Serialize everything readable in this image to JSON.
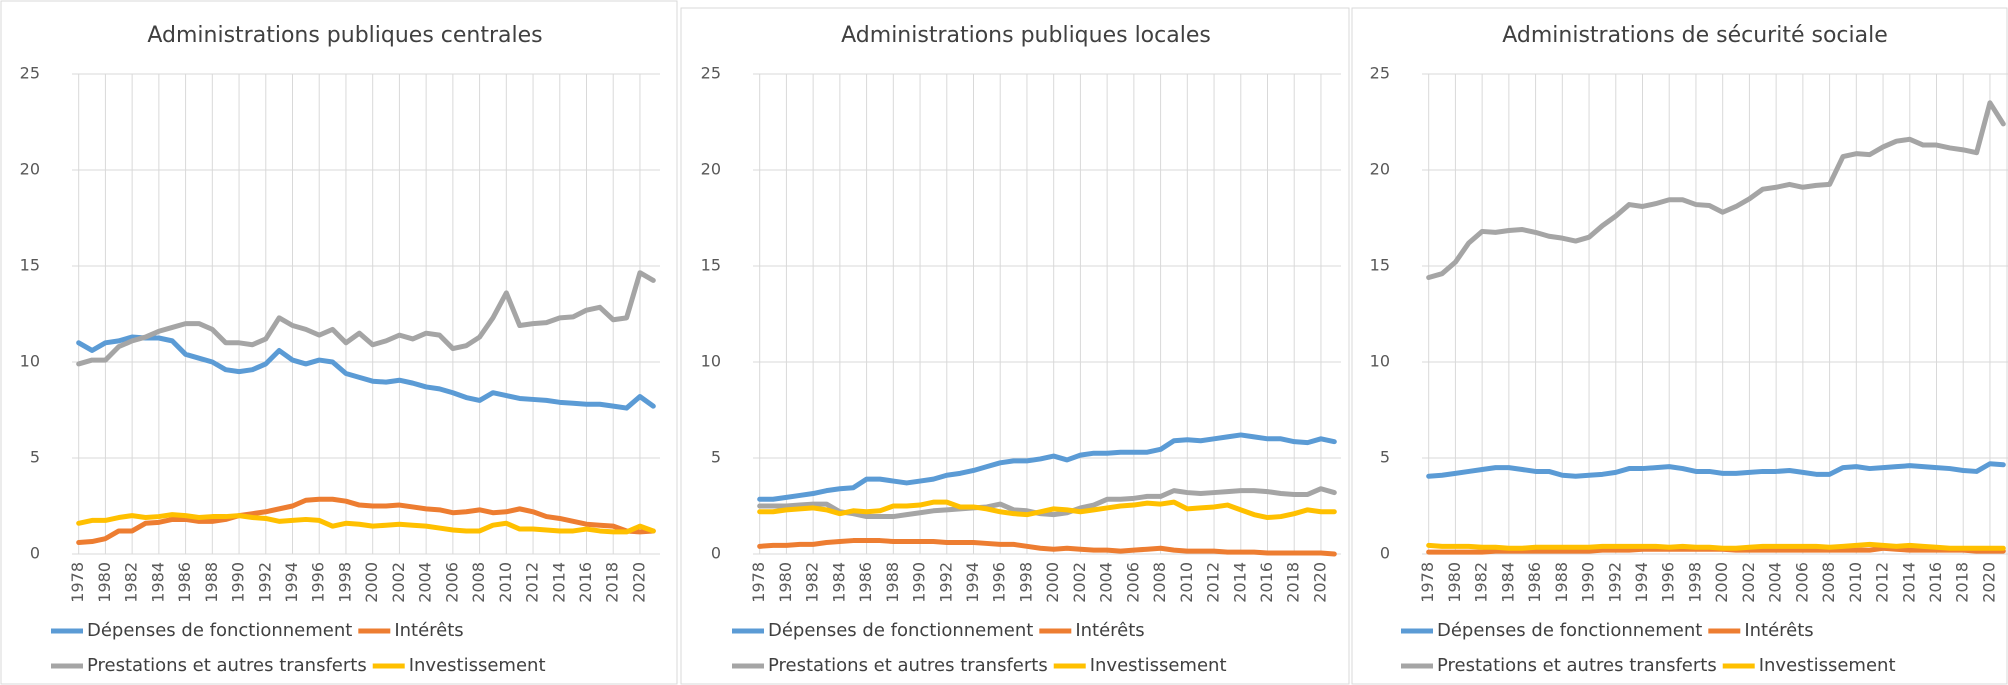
{
  "chart_data": [
    {
      "type": "line",
      "title": "Administrations publiques centrales",
      "x": [
        1978,
        1979,
        1980,
        1981,
        1982,
        1983,
        1984,
        1985,
        1986,
        1987,
        1988,
        1989,
        1990,
        1991,
        1992,
        1993,
        1994,
        1995,
        1996,
        1997,
        1998,
        1999,
        2000,
        2001,
        2002,
        2003,
        2004,
        2005,
        2006,
        2007,
        2008,
        2009,
        2010,
        2011,
        2012,
        2013,
        2014,
        2015,
        2016,
        2017,
        2018,
        2019,
        2020,
        2021
      ],
      "xlim": [
        1977.5,
        2021.5
      ],
      "xticks": [
        1978,
        1980,
        1982,
        1984,
        1986,
        1988,
        1990,
        1992,
        1994,
        1996,
        1998,
        2000,
        2002,
        2004,
        2006,
        2008,
        2010,
        2012,
        2014,
        2016,
        2018,
        2020
      ],
      "ylim": [
        0,
        25
      ],
      "yticks": [
        0,
        5,
        10,
        15,
        20,
        25
      ],
      "grid": true,
      "series": [
        {
          "name": "Dépenses de fonctionnement",
          "color": "#5b9bd5",
          "values": [
            11.0,
            10.6,
            11.0,
            11.1,
            11.3,
            11.25,
            11.25,
            11.1,
            10.4,
            10.2,
            10.0,
            9.6,
            9.5,
            9.6,
            9.9,
            10.6,
            10.1,
            9.9,
            10.1,
            10.0,
            9.4,
            9.2,
            9.0,
            8.95,
            9.05,
            8.9,
            8.7,
            8.6,
            8.4,
            8.15,
            8.0,
            8.4,
            8.25,
            8.1,
            8.05,
            8.0,
            7.9,
            7.85,
            7.8,
            7.8,
            7.7,
            7.6,
            8.2,
            7.7
          ]
        },
        {
          "name": "Intérêts",
          "color": "#ed7d31",
          "values": [
            0.6,
            0.65,
            0.8,
            1.2,
            1.2,
            1.6,
            1.65,
            1.8,
            1.8,
            1.7,
            1.7,
            1.8,
            2.0,
            2.1,
            2.2,
            2.35,
            2.5,
            2.8,
            2.85,
            2.85,
            2.75,
            2.55,
            2.5,
            2.5,
            2.55,
            2.45,
            2.35,
            2.3,
            2.15,
            2.2,
            2.3,
            2.15,
            2.2,
            2.35,
            2.2,
            1.95,
            1.85,
            1.7,
            1.55,
            1.5,
            1.45,
            1.2,
            1.15,
            1.2
          ]
        },
        {
          "name": "Prestations et autres transferts",
          "color": "#a5a5a5",
          "values": [
            9.9,
            10.1,
            10.1,
            10.8,
            11.1,
            11.3,
            11.6,
            11.8,
            12.0,
            12.0,
            11.7,
            11.0,
            11.0,
            10.9,
            11.2,
            12.3,
            11.9,
            11.7,
            11.4,
            11.7,
            11.0,
            11.5,
            10.9,
            11.1,
            11.4,
            11.2,
            11.5,
            11.4,
            10.7,
            10.85,
            11.3,
            12.3,
            13.6,
            11.9,
            12.0,
            12.05,
            12.3,
            12.35,
            12.7,
            12.85,
            12.2,
            12.3,
            14.65,
            14.25
          ]
        },
        {
          "name": "Investissement",
          "color": "#ffc000",
          "values": [
            1.6,
            1.75,
            1.75,
            1.9,
            2.0,
            1.9,
            1.95,
            2.05,
            2.0,
            1.9,
            1.95,
            1.95,
            2.0,
            1.9,
            1.85,
            1.7,
            1.75,
            1.8,
            1.75,
            1.45,
            1.6,
            1.55,
            1.45,
            1.5,
            1.55,
            1.5,
            1.45,
            1.35,
            1.25,
            1.2,
            1.2,
            1.5,
            1.6,
            1.3,
            1.3,
            1.25,
            1.2,
            1.2,
            1.3,
            1.2,
            1.15,
            1.15,
            1.45,
            1.2
          ]
        }
      ]
    },
    {
      "type": "line",
      "title": "Administrations publiques locales",
      "x": [
        1978,
        1979,
        1980,
        1981,
        1982,
        1983,
        1984,
        1985,
        1986,
        1987,
        1988,
        1989,
        1990,
        1991,
        1992,
        1993,
        1994,
        1995,
        1996,
        1997,
        1998,
        1999,
        2000,
        2001,
        2002,
        2003,
        2004,
        2005,
        2006,
        2007,
        2008,
        2009,
        2010,
        2011,
        2012,
        2013,
        2014,
        2015,
        2016,
        2017,
        2018,
        2019,
        2020,
        2021
      ],
      "xlim": [
        1977.5,
        2021.5
      ],
      "xticks": [
        1978,
        1980,
        1982,
        1984,
        1986,
        1988,
        1990,
        1992,
        1994,
        1996,
        1998,
        2000,
        2002,
        2004,
        2006,
        2008,
        2010,
        2012,
        2014,
        2016,
        2018,
        2020
      ],
      "ylim": [
        0,
        25
      ],
      "yticks": [
        0,
        5,
        10,
        15,
        20,
        25
      ],
      "grid": true,
      "series": [
        {
          "name": "Dépenses de fonctionnement",
          "color": "#5b9bd5",
          "values": [
            2.85,
            2.85,
            2.95,
            3.05,
            3.15,
            3.3,
            3.4,
            3.45,
            3.9,
            3.9,
            3.8,
            3.7,
            3.8,
            3.9,
            4.1,
            4.2,
            4.35,
            4.55,
            4.75,
            4.85,
            4.85,
            4.95,
            5.1,
            4.9,
            5.15,
            5.25,
            5.25,
            5.3,
            5.3,
            5.3,
            5.45,
            5.9,
            5.95,
            5.9,
            6.0,
            6.1,
            6.2,
            6.1,
            6.0,
            6.0,
            5.85,
            5.8,
            6.0,
            5.85
          ]
        },
        {
          "name": "Intérêts",
          "color": "#ed7d31",
          "values": [
            0.4,
            0.45,
            0.45,
            0.5,
            0.5,
            0.6,
            0.65,
            0.7,
            0.7,
            0.7,
            0.65,
            0.65,
            0.65,
            0.65,
            0.6,
            0.6,
            0.6,
            0.55,
            0.5,
            0.5,
            0.4,
            0.3,
            0.25,
            0.3,
            0.25,
            0.2,
            0.2,
            0.15,
            0.2,
            0.25,
            0.3,
            0.2,
            0.15,
            0.15,
            0.15,
            0.1,
            0.1,
            0.1,
            0.05,
            0.05,
            0.05,
            0.05,
            0.05,
            0.0
          ]
        },
        {
          "name": "Prestations et autres transferts",
          "color": "#a5a5a5",
          "values": [
            2.5,
            2.5,
            2.5,
            2.55,
            2.6,
            2.6,
            2.2,
            2.1,
            1.95,
            1.95,
            1.95,
            2.05,
            2.15,
            2.25,
            2.3,
            2.35,
            2.4,
            2.45,
            2.6,
            2.3,
            2.25,
            2.1,
            2.05,
            2.15,
            2.4,
            2.55,
            2.85,
            2.85,
            2.9,
            3.0,
            3.0,
            3.3,
            3.2,
            3.15,
            3.2,
            3.25,
            3.3,
            3.3,
            3.25,
            3.15,
            3.1,
            3.1,
            3.4,
            3.2
          ]
        },
        {
          "name": "Investissement",
          "color": "#ffc000",
          "values": [
            2.2,
            2.2,
            2.3,
            2.35,
            2.4,
            2.3,
            2.1,
            2.25,
            2.2,
            2.25,
            2.5,
            2.5,
            2.55,
            2.7,
            2.7,
            2.45,
            2.45,
            2.35,
            2.2,
            2.1,
            2.05,
            2.2,
            2.35,
            2.3,
            2.2,
            2.3,
            2.4,
            2.5,
            2.55,
            2.65,
            2.6,
            2.7,
            2.35,
            2.4,
            2.45,
            2.55,
            2.3,
            2.05,
            1.9,
            1.95,
            2.1,
            2.3,
            2.2,
            2.2
          ]
        }
      ]
    },
    {
      "type": "line",
      "title": "Administrations de sécurité sociale",
      "x": [
        1978,
        1979,
        1980,
        1981,
        1982,
        1983,
        1984,
        1985,
        1986,
        1987,
        1988,
        1989,
        1990,
        1991,
        1992,
        1993,
        1994,
        1995,
        1996,
        1997,
        1998,
        1999,
        2000,
        2001,
        2002,
        2003,
        2004,
        2005,
        2006,
        2007,
        2008,
        2009,
        2010,
        2011,
        2012,
        2013,
        2014,
        2015,
        2016,
        2017,
        2018,
        2019,
        2020,
        2021
      ],
      "xlim": [
        1977.5,
        2021.5
      ],
      "xticks": [
        1978,
        1980,
        1982,
        1984,
        1986,
        1988,
        1990,
        1992,
        1994,
        1996,
        1998,
        2000,
        2002,
        2004,
        2006,
        2008,
        2010,
        2012,
        2014,
        2016,
        2018,
        2020
      ],
      "ylim": [
        0,
        25
      ],
      "yticks": [
        0,
        5,
        10,
        15,
        20,
        25
      ],
      "grid": true,
      "series": [
        {
          "name": "Dépenses de fonctionnement",
          "color": "#5b9bd5",
          "values": [
            4.05,
            4.1,
            4.2,
            4.3,
            4.4,
            4.5,
            4.5,
            4.4,
            4.3,
            4.3,
            4.1,
            4.05,
            4.1,
            4.15,
            4.25,
            4.45,
            4.45,
            4.5,
            4.55,
            4.45,
            4.3,
            4.3,
            4.2,
            4.2,
            4.25,
            4.3,
            4.3,
            4.35,
            4.25,
            4.15,
            4.15,
            4.5,
            4.55,
            4.45,
            4.5,
            4.55,
            4.6,
            4.55,
            4.5,
            4.45,
            4.35,
            4.3,
            4.7,
            4.65
          ]
        },
        {
          "name": "Intérêts",
          "color": "#ed7d31",
          "values": [
            0.1,
            0.1,
            0.1,
            0.1,
            0.1,
            0.15,
            0.15,
            0.15,
            0.15,
            0.15,
            0.15,
            0.15,
            0.15,
            0.2,
            0.2,
            0.2,
            0.25,
            0.25,
            0.25,
            0.25,
            0.25,
            0.25,
            0.25,
            0.2,
            0.2,
            0.2,
            0.2,
            0.2,
            0.2,
            0.2,
            0.2,
            0.2,
            0.2,
            0.2,
            0.3,
            0.25,
            0.2,
            0.2,
            0.2,
            0.2,
            0.2,
            0.15,
            0.15,
            0.15
          ]
        },
        {
          "name": "Prestations et autres transferts",
          "color": "#a5a5a5",
          "values": [
            14.4,
            14.6,
            15.2,
            16.2,
            16.8,
            16.75,
            16.85,
            16.9,
            16.75,
            16.55,
            16.45,
            16.3,
            16.5,
            17.1,
            17.6,
            18.2,
            18.1,
            18.25,
            18.45,
            18.45,
            18.2,
            18.15,
            17.8,
            18.1,
            18.5,
            19.0,
            19.1,
            19.25,
            19.1,
            19.2,
            19.25,
            20.7,
            20.85,
            20.8,
            21.2,
            21.5,
            21.6,
            21.3,
            21.3,
            21.15,
            21.05,
            20.9,
            23.5,
            22.4
          ]
        },
        {
          "name": "Investissement",
          "color": "#ffc000",
          "values": [
            0.45,
            0.4,
            0.4,
            0.4,
            0.35,
            0.35,
            0.3,
            0.3,
            0.35,
            0.35,
            0.35,
            0.35,
            0.35,
            0.4,
            0.4,
            0.4,
            0.4,
            0.4,
            0.35,
            0.4,
            0.35,
            0.35,
            0.3,
            0.3,
            0.35,
            0.4,
            0.4,
            0.4,
            0.4,
            0.4,
            0.35,
            0.4,
            0.45,
            0.5,
            0.45,
            0.4,
            0.45,
            0.4,
            0.35,
            0.3,
            0.3,
            0.3,
            0.3,
            0.3
          ]
        }
      ]
    }
  ]
}
